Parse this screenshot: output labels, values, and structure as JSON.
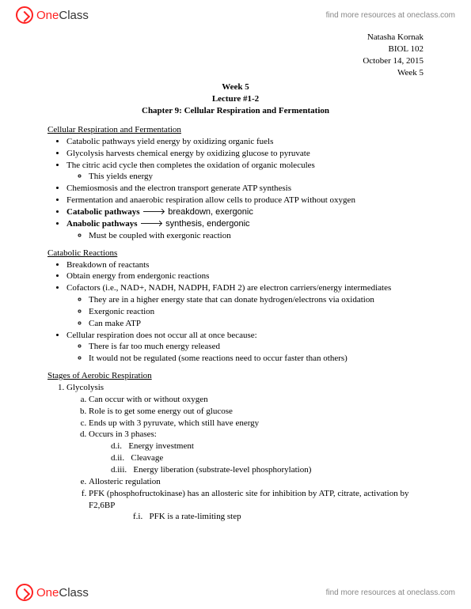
{
  "brand": {
    "one": "One",
    "class": "Class"
  },
  "header_link": "find more resources at oneclass.com",
  "meta": {
    "author": "Natasha Kornak",
    "course": "BIOL 102",
    "date": "October 14, 2015",
    "week": "Week 5"
  },
  "title": {
    "week": "Week 5",
    "lecture": "Lecture #1-2",
    "chapter": "Chapter 9: Cellular Respiration and Fermentation"
  },
  "s1": {
    "heading": "Cellular Respiration and Fermentation",
    "b1": "Catabolic pathways yield energy by oxidizing organic fuels",
    "b2": "Glycolysis harvests chemical energy by oxidizing glucose to pyruvate",
    "b3": "The citric acid cycle then completes the oxidation of organic molecules",
    "b3a": "This yields energy",
    "b4": "Chemiosmosis and the electron transport generate ATP synthesis",
    "b5": "Fermentation and anaerobic respiration allow cells to produce ATP without oxygen",
    "b6_bold": "Catabolic pathways",
    "b6_rest": " 🡒 breakdown, exergonic",
    "b7_bold": "Anabolic pathways",
    "b7_rest": " 🡒 synthesis, endergonic",
    "b7a": "Must be coupled with exergonic reaction"
  },
  "s2": {
    "heading": "Catabolic Reactions",
    "b1": "Breakdown of reactants",
    "b2": "Obtain energy from endergonic reactions",
    "b3": "Cofactors (i.e., NAD+, NADH, NADPH, FADH 2) are electron carriers/energy intermediates",
    "b3a": "They are in a higher energy state that can donate hydrogen/electrons via oxidation",
    "b3b": "Exergonic reaction",
    "b3c": "Can make ATP",
    "b4": "Cellular respiration does not occur all at once because:",
    "b4a": "There is far too much energy released",
    "b4b": "It would not be regulated (some reactions need to occur faster than others)"
  },
  "s3": {
    "heading": "Stages of Aerobic Respiration",
    "n1": "Glycolysis",
    "a": "Can occur with or without oxygen",
    "b": "Role is to get some energy out of glucose",
    "c": "Ends up with 3 pyruvate, which still have energy",
    "d": "Occurs in 3 phases:",
    "d1_lbl": "d.i.",
    "d1": "Energy investment",
    "d2_lbl": "d.ii.",
    "d2": "Cleavage",
    "d3_lbl": "d.iii.",
    "d3": "Energy liberation (substrate-level phosphorylation)",
    "e": "Allosteric regulation",
    "f": "PFK (phosphofructokinase) has an allosteric site for inhibition by ATP, citrate, activation by F2,6BP",
    "f1_lbl": "f.i.",
    "f1": "PFK is a rate-limiting step"
  }
}
